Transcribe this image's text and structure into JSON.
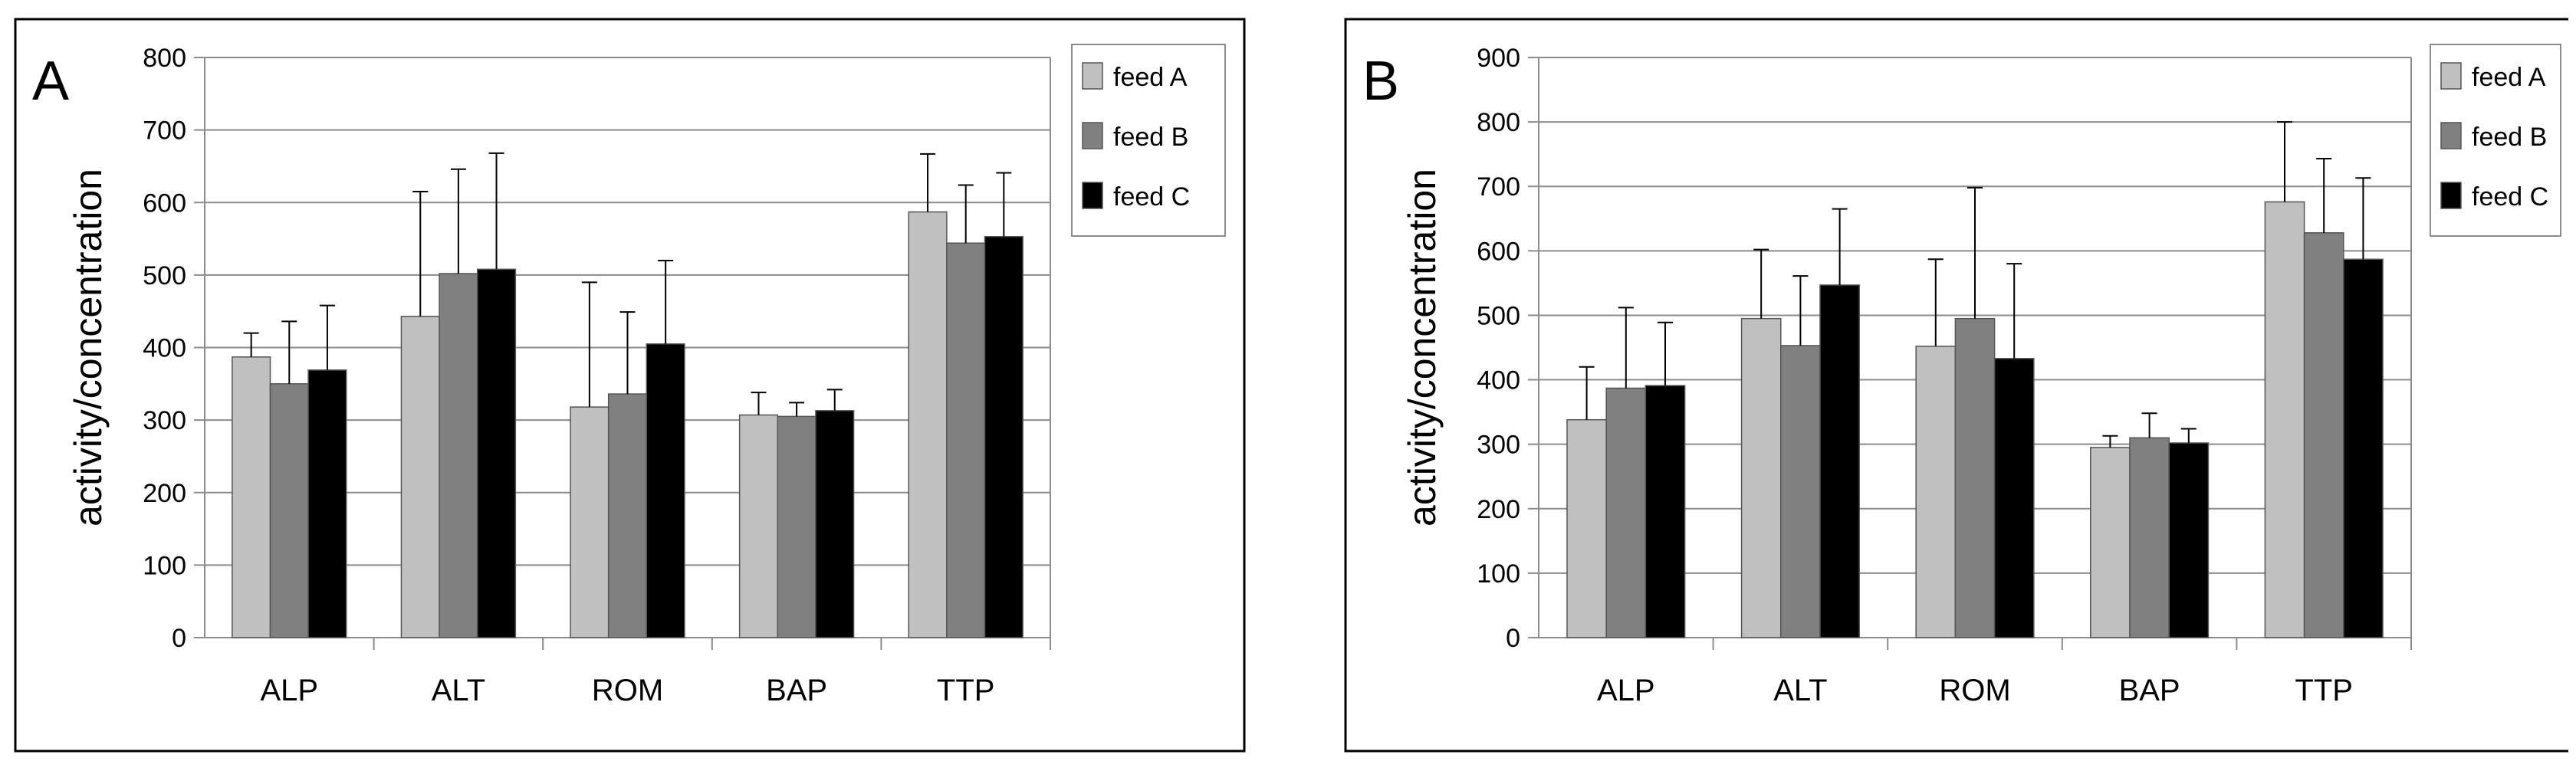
{
  "chart_data": [
    {
      "type": "bar",
      "panel_label": "A",
      "title": "",
      "xlabel": "",
      "ylabel": "activity/concentration",
      "ylim": [
        0,
        800
      ],
      "yticks": [
        0,
        100,
        200,
        300,
        400,
        500,
        600,
        700,
        800
      ],
      "grid": true,
      "legend_position": "top-right",
      "categories": [
        "ALP",
        "ALT",
        "ROM",
        "BAP",
        "TTP"
      ],
      "series": [
        {
          "name": "feed A",
          "color": "#c0c0c0",
          "values": [
            387,
            443,
            318,
            307,
            587
          ],
          "errors": [
            33,
            172,
            172,
            31,
            80
          ]
        },
        {
          "name": "feed B",
          "color": "#808080",
          "values": [
            350,
            502,
            336,
            305,
            544
          ],
          "errors": [
            86,
            144,
            113,
            19,
            80
          ]
        },
        {
          "name": "feed C",
          "color": "#000000",
          "values": [
            369,
            508,
            405,
            313,
            553
          ],
          "errors": [
            89,
            160,
            115,
            29,
            88
          ]
        }
      ]
    },
    {
      "type": "bar",
      "panel_label": "B",
      "title": "",
      "xlabel": "",
      "ylabel": "activity/concentration",
      "ylim": [
        0,
        900
      ],
      "yticks": [
        0,
        100,
        200,
        300,
        400,
        500,
        600,
        700,
        800,
        900
      ],
      "grid": true,
      "legend_position": "top-right",
      "categories": [
        "ALP",
        "ALT",
        "ROM",
        "BAP",
        "TTP"
      ],
      "series": [
        {
          "name": "feed A",
          "color": "#c0c0c0",
          "values": [
            338,
            495,
            452,
            295,
            676
          ],
          "errors": [
            82,
            107,
            135,
            18,
            124
          ]
        },
        {
          "name": "feed B",
          "color": "#808080",
          "values": [
            387,
            453,
            495,
            310,
            628
          ],
          "errors": [
            125,
            108,
            203,
            38,
            115
          ]
        },
        {
          "name": "feed C",
          "color": "#000000",
          "values": [
            391,
            547,
            433,
            302,
            587
          ],
          "errors": [
            98,
            118,
            147,
            22,
            126
          ]
        }
      ]
    }
  ]
}
